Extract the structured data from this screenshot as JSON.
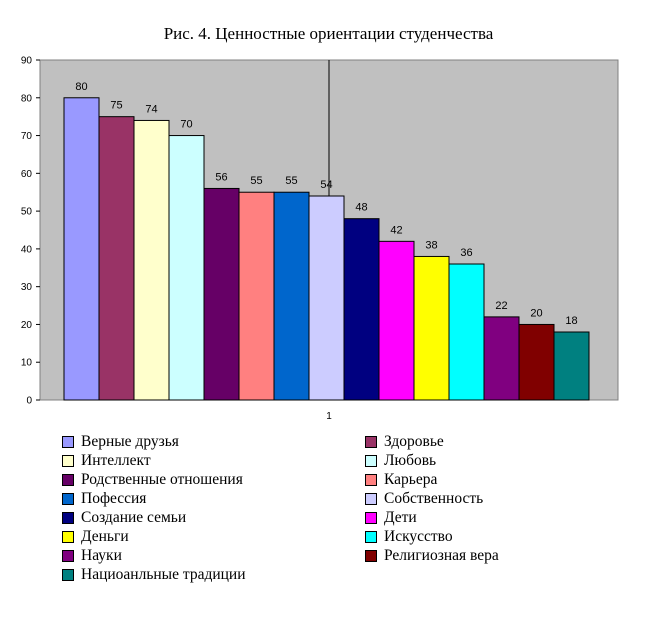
{
  "chart_data": {
    "type": "bar",
    "title": "Рис. 4. Ценностные ориентации студенчества",
    "categories": [
      "1"
    ],
    "ylim": [
      0,
      90
    ],
    "yticks": [
      "0",
      "10",
      "20",
      "30",
      "40",
      "50",
      "60",
      "70",
      "80",
      "90"
    ],
    "grid": false,
    "legend_position": "bottom",
    "series": [
      {
        "name": "Верные друзья",
        "value": 80,
        "color": "#9999FF"
      },
      {
        "name": "Здоровье",
        "value": 75,
        "color": "#993366"
      },
      {
        "name": "Интеллект",
        "value": 74,
        "color": "#FFFFCC"
      },
      {
        "name": "Любовь",
        "value": 70,
        "color": "#CCFFFF"
      },
      {
        "name": "Родственные отношения",
        "value": 56,
        "color": "#660066"
      },
      {
        "name": "Карьера",
        "value": 55,
        "color": "#FF8080"
      },
      {
        "name": "Пофессия",
        "value": 55,
        "color": "#0066CC"
      },
      {
        "name": "Собственность",
        "value": 54,
        "color": "#CCCCFF"
      },
      {
        "name": "Создание семьи",
        "value": 48,
        "color": "#000080"
      },
      {
        "name": "Дети",
        "value": 42,
        "color": "#FF00FF"
      },
      {
        "name": "Деньги",
        "value": 38,
        "color": "#FFFF00"
      },
      {
        "name": "Искусство",
        "value": 36,
        "color": "#00FFFF"
      },
      {
        "name": "Науки",
        "value": 22,
        "color": "#800080"
      },
      {
        "name": "Религиозная вера",
        "value": 20,
        "color": "#800000"
      },
      {
        "name": "Нациоанльные традиции",
        "value": 18,
        "color": "#008080"
      }
    ]
  }
}
